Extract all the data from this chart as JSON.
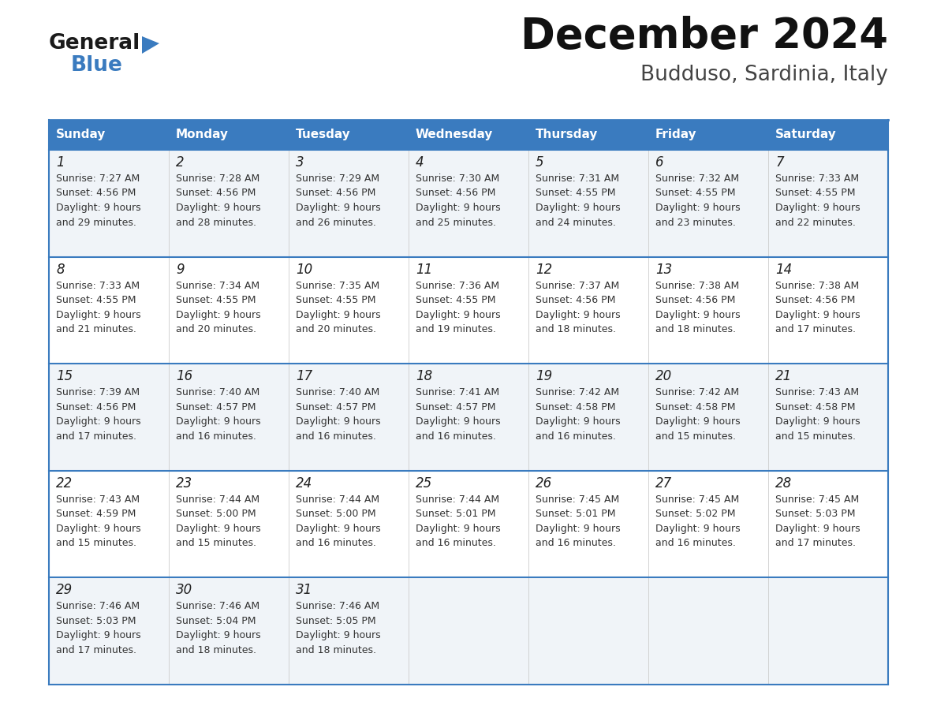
{
  "title": "December 2024",
  "subtitle": "Budduso, Sardinia, Italy",
  "header_bg": "#3a7bbf",
  "header_text": "#ffffff",
  "border_color": "#3a7bbf",
  "row_bg_light": "#f0f4f8",
  "row_bg_white": "#ffffff",
  "days_of_week": [
    "Sunday",
    "Monday",
    "Tuesday",
    "Wednesday",
    "Thursday",
    "Friday",
    "Saturday"
  ],
  "calendar_data": [
    [
      {
        "day": "1",
        "sunrise": "7:27 AM",
        "sunset": "4:56 PM",
        "daylight_h": "9 hours",
        "daylight_m": "and 29 minutes."
      },
      {
        "day": "2",
        "sunrise": "7:28 AM",
        "sunset": "4:56 PM",
        "daylight_h": "9 hours",
        "daylight_m": "and 28 minutes."
      },
      {
        "day": "3",
        "sunrise": "7:29 AM",
        "sunset": "4:56 PM",
        "daylight_h": "9 hours",
        "daylight_m": "and 26 minutes."
      },
      {
        "day": "4",
        "sunrise": "7:30 AM",
        "sunset": "4:56 PM",
        "daylight_h": "9 hours",
        "daylight_m": "and 25 minutes."
      },
      {
        "day": "5",
        "sunrise": "7:31 AM",
        "sunset": "4:55 PM",
        "daylight_h": "9 hours",
        "daylight_m": "and 24 minutes."
      },
      {
        "day": "6",
        "sunrise": "7:32 AM",
        "sunset": "4:55 PM",
        "daylight_h": "9 hours",
        "daylight_m": "and 23 minutes."
      },
      {
        "day": "7",
        "sunrise": "7:33 AM",
        "sunset": "4:55 PM",
        "daylight_h": "9 hours",
        "daylight_m": "and 22 minutes."
      }
    ],
    [
      {
        "day": "8",
        "sunrise": "7:33 AM",
        "sunset": "4:55 PM",
        "daylight_h": "9 hours",
        "daylight_m": "and 21 minutes."
      },
      {
        "day": "9",
        "sunrise": "7:34 AM",
        "sunset": "4:55 PM",
        "daylight_h": "9 hours",
        "daylight_m": "and 20 minutes."
      },
      {
        "day": "10",
        "sunrise": "7:35 AM",
        "sunset": "4:55 PM",
        "daylight_h": "9 hours",
        "daylight_m": "and 20 minutes."
      },
      {
        "day": "11",
        "sunrise": "7:36 AM",
        "sunset": "4:55 PM",
        "daylight_h": "9 hours",
        "daylight_m": "and 19 minutes."
      },
      {
        "day": "12",
        "sunrise": "7:37 AM",
        "sunset": "4:56 PM",
        "daylight_h": "9 hours",
        "daylight_m": "and 18 minutes."
      },
      {
        "day": "13",
        "sunrise": "7:38 AM",
        "sunset": "4:56 PM",
        "daylight_h": "9 hours",
        "daylight_m": "and 18 minutes."
      },
      {
        "day": "14",
        "sunrise": "7:38 AM",
        "sunset": "4:56 PM",
        "daylight_h": "9 hours",
        "daylight_m": "and 17 minutes."
      }
    ],
    [
      {
        "day": "15",
        "sunrise": "7:39 AM",
        "sunset": "4:56 PM",
        "daylight_h": "9 hours",
        "daylight_m": "and 17 minutes."
      },
      {
        "day": "16",
        "sunrise": "7:40 AM",
        "sunset": "4:57 PM",
        "daylight_h": "9 hours",
        "daylight_m": "and 16 minutes."
      },
      {
        "day": "17",
        "sunrise": "7:40 AM",
        "sunset": "4:57 PM",
        "daylight_h": "9 hours",
        "daylight_m": "and 16 minutes."
      },
      {
        "day": "18",
        "sunrise": "7:41 AM",
        "sunset": "4:57 PM",
        "daylight_h": "9 hours",
        "daylight_m": "and 16 minutes."
      },
      {
        "day": "19",
        "sunrise": "7:42 AM",
        "sunset": "4:58 PM",
        "daylight_h": "9 hours",
        "daylight_m": "and 16 minutes."
      },
      {
        "day": "20",
        "sunrise": "7:42 AM",
        "sunset": "4:58 PM",
        "daylight_h": "9 hours",
        "daylight_m": "and 15 minutes."
      },
      {
        "day": "21",
        "sunrise": "7:43 AM",
        "sunset": "4:58 PM",
        "daylight_h": "9 hours",
        "daylight_m": "and 15 minutes."
      }
    ],
    [
      {
        "day": "22",
        "sunrise": "7:43 AM",
        "sunset": "4:59 PM",
        "daylight_h": "9 hours",
        "daylight_m": "and 15 minutes."
      },
      {
        "day": "23",
        "sunrise": "7:44 AM",
        "sunset": "5:00 PM",
        "daylight_h": "9 hours",
        "daylight_m": "and 15 minutes."
      },
      {
        "day": "24",
        "sunrise": "7:44 AM",
        "sunset": "5:00 PM",
        "daylight_h": "9 hours",
        "daylight_m": "and 16 minutes."
      },
      {
        "day": "25",
        "sunrise": "7:44 AM",
        "sunset": "5:01 PM",
        "daylight_h": "9 hours",
        "daylight_m": "and 16 minutes."
      },
      {
        "day": "26",
        "sunrise": "7:45 AM",
        "sunset": "5:01 PM",
        "daylight_h": "9 hours",
        "daylight_m": "and 16 minutes."
      },
      {
        "day": "27",
        "sunrise": "7:45 AM",
        "sunset": "5:02 PM",
        "daylight_h": "9 hours",
        "daylight_m": "and 16 minutes."
      },
      {
        "day": "28",
        "sunrise": "7:45 AM",
        "sunset": "5:03 PM",
        "daylight_h": "9 hours",
        "daylight_m": "and 17 minutes."
      }
    ],
    [
      {
        "day": "29",
        "sunrise": "7:46 AM",
        "sunset": "5:03 PM",
        "daylight_h": "9 hours",
        "daylight_m": "and 17 minutes."
      },
      {
        "day": "30",
        "sunrise": "7:46 AM",
        "sunset": "5:04 PM",
        "daylight_h": "9 hours",
        "daylight_m": "and 18 minutes."
      },
      {
        "day": "31",
        "sunrise": "7:46 AM",
        "sunset": "5:05 PM",
        "daylight_h": "9 hours",
        "daylight_m": "and 18 minutes."
      },
      null,
      null,
      null,
      null
    ]
  ],
  "fig_width": 11.88,
  "fig_height": 9.18,
  "dpi": 100
}
